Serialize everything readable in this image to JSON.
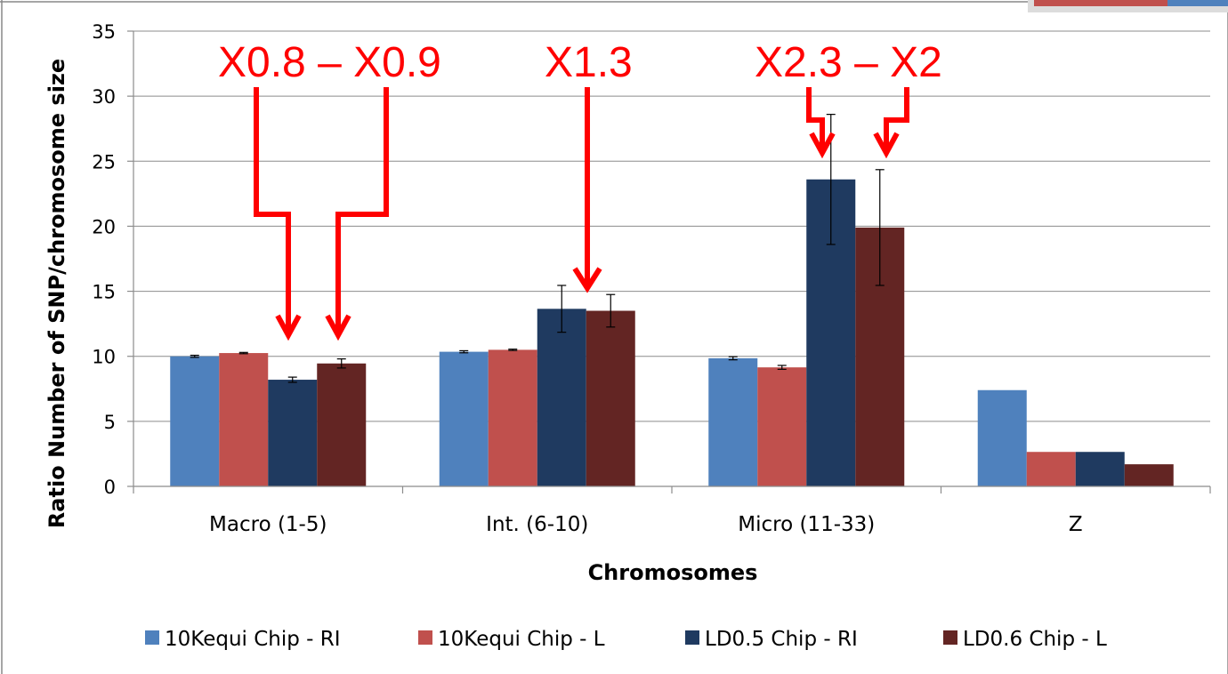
{
  "chart_data": {
    "type": "bar",
    "xlabel": "Chromosomes",
    "ylabel": "Ratio Number of SNP/chromosome size",
    "ylim": [
      0,
      35
    ],
    "yticks": [
      0,
      5,
      10,
      15,
      20,
      25,
      30,
      35
    ],
    "grid": true,
    "legend_position": "bottom",
    "categories": [
      "Macro (1-5)",
      "Int. (6-10)",
      "Micro (11-33)",
      "Z"
    ],
    "series": [
      {
        "name": "10Kequi Chip - RI",
        "color": "#4f81bd",
        "values": [
          10.0,
          10.35,
          9.85,
          7.4
        ],
        "errors": [
          0.08,
          0.08,
          0.12,
          0
        ]
      },
      {
        "name": "10Kequi Chip - L",
        "color": "#c0504d",
        "values": [
          10.25,
          10.5,
          9.15,
          2.65
        ],
        "errors": [
          0.05,
          0.05,
          0.15,
          0
        ]
      },
      {
        "name": "LD0.5 Chip - RI",
        "color": "#1f3a60",
        "values": [
          8.2,
          13.65,
          23.6,
          2.65
        ],
        "errors": [
          0.2,
          1.8,
          5.0,
          0
        ]
      },
      {
        "name": "LD0.6 Chip - L",
        "color": "#632523",
        "values": [
          9.45,
          13.5,
          19.9,
          1.7
        ],
        "errors": [
          0.35,
          1.25,
          4.45,
          0
        ]
      }
    ],
    "annotations": [
      {
        "text": "X0.8 – X0.9",
        "color": "#ff0000"
      },
      {
        "text": "X1.3",
        "color": "#ff0000"
      },
      {
        "text": "X2.3 – X2",
        "color": "#ff0000"
      }
    ]
  }
}
